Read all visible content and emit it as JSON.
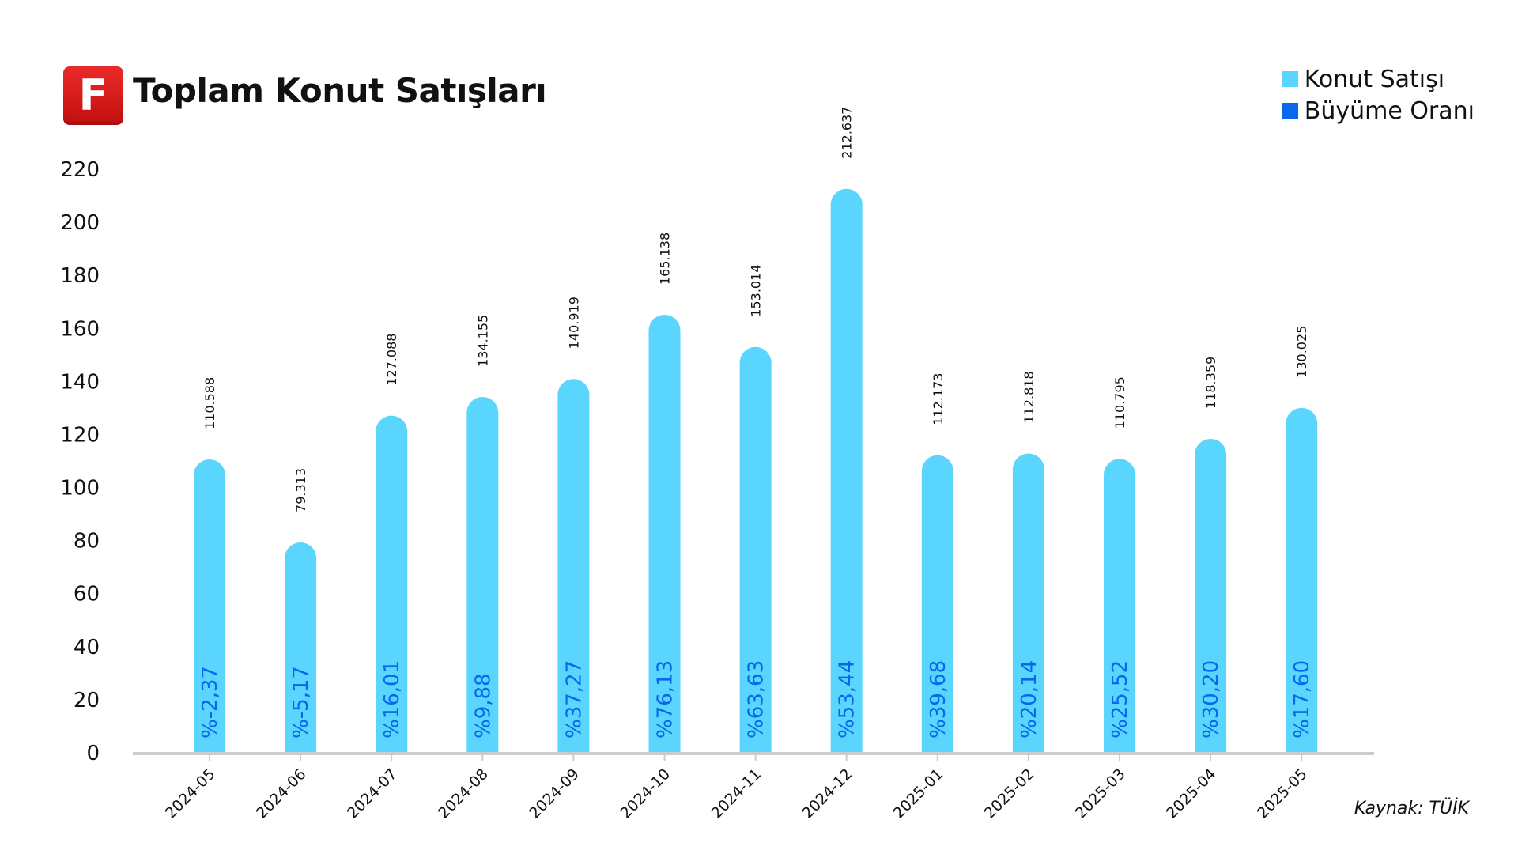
{
  "header": {
    "logo_letter": "F",
    "title": "Toplam Konut Satışları"
  },
  "legend": [
    {
      "label": "Konut Satışı",
      "color": "#5ad5fd"
    },
    {
      "label": "Büyüme Oranı",
      "color": "#0866ef"
    }
  ],
  "source": "Kaynak: TÜİK",
  "colors": {
    "bar": "#5ad5fd",
    "growth_text": "#0866ef",
    "axis_line": "#cccccc",
    "text": "#111111"
  },
  "chart_data": {
    "type": "bar",
    "title": "Toplam Konut Satışları",
    "xlabel": "",
    "ylabel": "",
    "ylim": [
      0,
      220
    ],
    "yticks": [
      0,
      20,
      40,
      60,
      80,
      100,
      120,
      140,
      160,
      180,
      200,
      220
    ],
    "grid": false,
    "legend_position": "top-right",
    "categories": [
      "2024-05",
      "2024-06",
      "2024-07",
      "2024-08",
      "2024-09",
      "2024-10",
      "2024-11",
      "2024-12",
      "2025-01",
      "2025-02",
      "2025-03",
      "2025-04",
      "2025-05"
    ],
    "series": [
      {
        "name": "Konut Satışı",
        "values": [
          110.588,
          79.313,
          127.088,
          134.155,
          140.919,
          165.138,
          153.014,
          212.637,
          112.173,
          112.818,
          110.795,
          118.359,
          130.025
        ],
        "labels": [
          "110.588",
          "79.313",
          "127.088",
          "134.155",
          "140.919",
          "165.138",
          "153.014",
          "212.637",
          "112.173",
          "112.818",
          "110.795",
          "118.359",
          "130.025"
        ]
      },
      {
        "name": "Büyüme Oranı",
        "values": [
          -2.37,
          -5.17,
          16.01,
          9.88,
          37.27,
          76.13,
          63.63,
          53.44,
          39.68,
          20.14,
          25.52,
          30.2,
          17.6
        ],
        "labels": [
          "%-2,37",
          "%-5,17",
          "%16,01",
          "%9,88",
          "%37,27",
          "%76,13",
          "%63,63",
          "%53,44",
          "%39,68",
          "%20,14",
          "%25,52",
          "%30,20",
          "%17,60"
        ]
      }
    ]
  }
}
